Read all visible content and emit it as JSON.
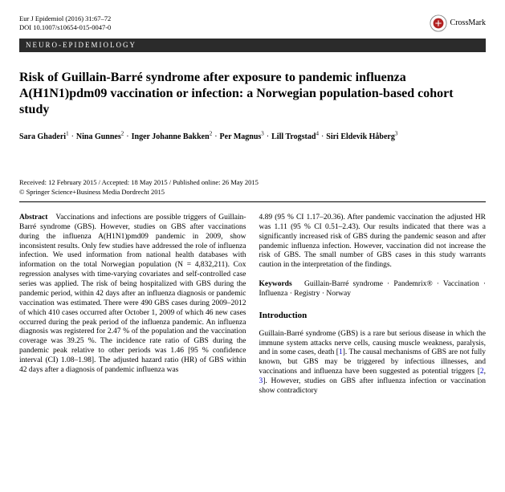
{
  "journal": {
    "citation": "Eur J Epidemiol (2016) 31:67–72",
    "doi": "DOI 10.1007/s10654-015-0047-0"
  },
  "crossmark": "CrossMark",
  "category": "NEURO-EPIDEMIOLOGY",
  "title": "Risk of Guillain-Barré syndrome after exposure to pandemic influenza A(H1N1)pdm09 vaccination or infection: a Norwegian population-based cohort study",
  "authors": [
    {
      "name": "Sara Ghaderi",
      "aff": "1"
    },
    {
      "name": "Nina Gunnes",
      "aff": "2"
    },
    {
      "name": "Inger Johanne Bakken",
      "aff": "2"
    },
    {
      "name": "Per Magnus",
      "aff": "3"
    },
    {
      "name": "Lill Trogstad",
      "aff": "4"
    },
    {
      "name": "Siri Eldevik Håberg",
      "aff": "3"
    }
  ],
  "received": "Received: 12 February 2015 / Accepted: 18 May 2015 / Published online: 26 May 2015",
  "copyright": "© Springer Science+Business Media Dordrecht 2015",
  "abstractLabel": "Abstract",
  "abstractLeft": "Vaccinations and infections are possible triggers of Guillain-Barré syndrome (GBS). However, studies on GBS after vaccinations during the influenza A(H1N1)pmd09 pandemic in 2009, show inconsistent results. Only few studies have addressed the role of influenza infection. We used information from national health databases with information on the total Norwegian population (N = 4,832,211). Cox regression analyses with time-varying covariates and self-controlled case series was applied. The risk of being hospitalized with GBS during the pandemic period, within 42 days after an influenza diagnosis or pandemic vaccination was estimated. There were 490 GBS cases during 2009–2012 of which 410 cases occurred after October 1, 2009 of which 46 new cases occurred during the peak period of the influenza pandemic. An influenza diagnosis was registered for 2.47 % of the population and the vaccination coverage was 39.25 %. The incidence rate ratio of GBS during the pandemic peak relative to other periods was 1.46 [95 % confidence interval (CI) 1.08–1.98]. The adjusted hazard ratio (HR) of GBS within 42 days after a diagnosis of pandemic influenza was",
  "abstractRight": "4.89 (95 % CI 1.17–20.36). After pandemic vaccination the adjusted HR was 1.11 (95 % CI 0.51–2.43). Our results indicated that there was a significantly increased risk of GBS during the pandemic season and after pandemic influenza infection. However, vaccination did not increase the risk of GBS. The small number of GBS cases in this study warrants caution in the interpretation of the findings.",
  "keywordsLabel": "Keywords",
  "keywords": "Guillain-Barré syndrome · Pandemrix® · Vaccination · Influenza · Registry · Norway",
  "introHeading": "Introduction",
  "introText": "Guillain-Barré syndrome (GBS) is a rare but serious disease in which the immune system attacks nerve cells, causing muscle weakness, paralysis, and in some cases, death [1]. The causal mechanisms of GBS are not fully known, but GBS may be triggered by infectious illnesses, and vaccinations and influenza have been suggested as potential triggers [2, 3]. However, studies on GBS after influenza infection or vaccination show contradictory",
  "refs": {
    "r1": "1",
    "r2": "2",
    "r3": "3"
  }
}
